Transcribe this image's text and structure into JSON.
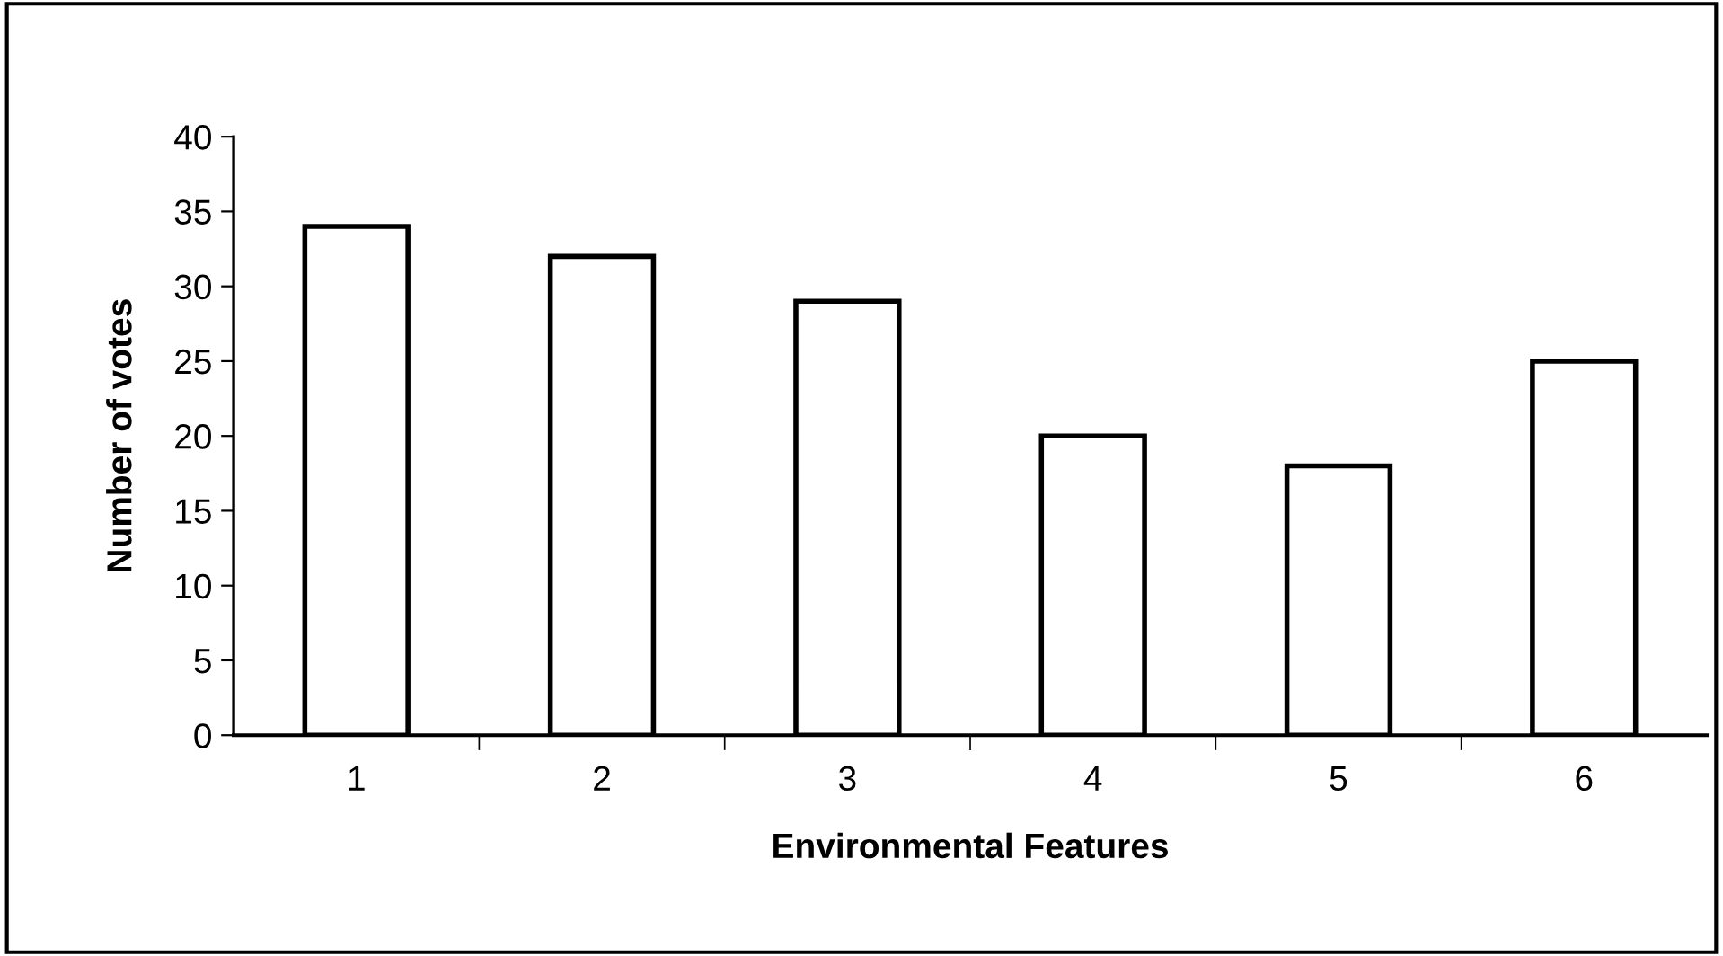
{
  "chart_data": {
    "type": "bar",
    "xlabel": "Environmental Features",
    "ylabel": "Number of votes",
    "categories": [
      "1",
      "2",
      "3",
      "4",
      "5",
      "6"
    ],
    "values": [
      34,
      32,
      29,
      20,
      18,
      25
    ],
    "color": "#ffffff",
    "ylim": [
      0,
      40
    ],
    "yticks": [
      0,
      5,
      10,
      15,
      20,
      25,
      30,
      35,
      40
    ],
    "grid": false
  }
}
